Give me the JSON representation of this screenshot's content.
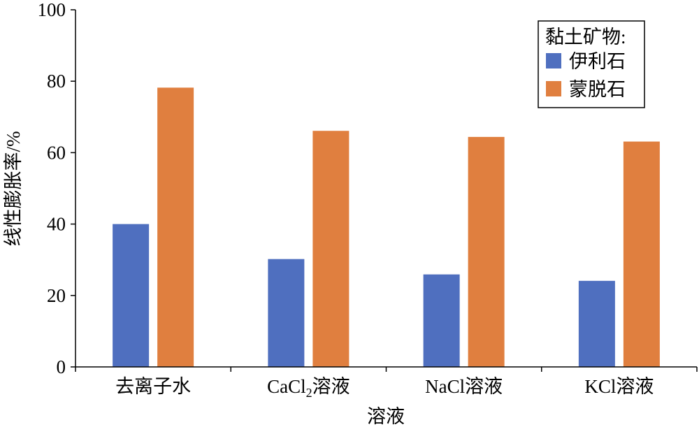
{
  "chart_data": {
    "type": "bar",
    "title": "",
    "xlabel": "溶液",
    "ylabel": "线性膨胀率/%",
    "ylim": [
      0,
      100
    ],
    "yticks": [
      0,
      20,
      40,
      60,
      80,
      100
    ],
    "grid": false,
    "categories": [
      {
        "main": "去离子水",
        "sub": "",
        "after": ""
      },
      {
        "main": "CaCl",
        "sub": "2",
        "after": "溶液"
      },
      {
        "main": "NaCl溶液",
        "sub": "",
        "after": ""
      },
      {
        "main": "KCl溶液",
        "sub": "",
        "after": ""
      }
    ],
    "legend": {
      "title": "黏土矿物:",
      "position": "top-right"
    },
    "series": [
      {
        "name": "伊利石",
        "color": "#4f6fbf",
        "values": [
          40,
          30.2,
          25.9,
          24.1
        ]
      },
      {
        "name": "蒙脱石",
        "color": "#e07f3f",
        "values": [
          78.2,
          66.1,
          64.4,
          63.1
        ]
      }
    ]
  }
}
